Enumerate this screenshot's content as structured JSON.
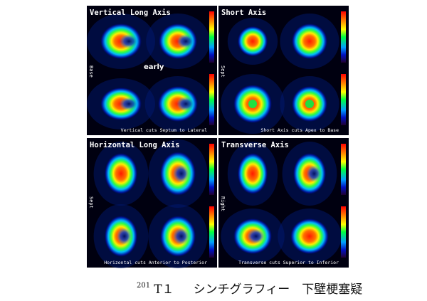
{
  "figure": {
    "panels": [
      {
        "title": "Vertical Long Axis",
        "side_label": "Base",
        "footer": "Vertical cuts Septum to Lateral"
      },
      {
        "title": "Short Axis",
        "side_label": "Sept",
        "footer": "Short Axis cuts Apex to Base"
      },
      {
        "title": "Horizontal Long Axis",
        "side_label": "Sept",
        "footer": "Horizontal cuts Anterior to Posterior"
      },
      {
        "title": "Transverse Axis",
        "side_label": "Right",
        "footer": "Transverse cuts Superior to Inferior"
      }
    ],
    "annotation": "early",
    "caption": {
      "superscript": "201",
      "label": "T１",
      "text": "シンチグラフィー　下壁梗塞疑"
    }
  }
}
